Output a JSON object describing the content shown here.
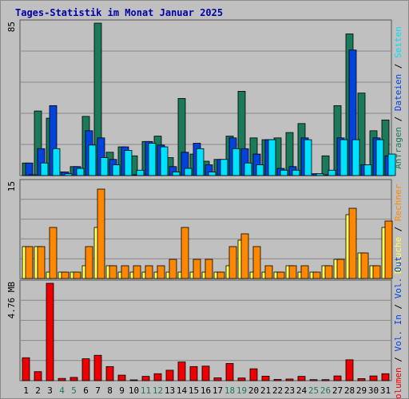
{
  "chart_data": {
    "type": "bar",
    "title": "Tages-Statistik im Monat Januar 2025",
    "days": [
      "1",
      "2",
      "3",
      "4",
      "5",
      "6",
      "7",
      "8",
      "9",
      "10",
      "11",
      "12",
      "13",
      "14",
      "15",
      "16",
      "17",
      "18",
      "19",
      "20",
      "21",
      "22",
      "23",
      "24",
      "25",
      "26",
      "27",
      "28",
      "29",
      "30",
      "31"
    ],
    "weekend_days": [
      "4",
      "5",
      "11",
      "12",
      "18",
      "19",
      "25",
      "26"
    ],
    "panels": [
      {
        "name": "top",
        "ymax": 85,
        "ymax_label": "85",
        "series": [
          {
            "name": "Anfragen",
            "color": "#1a7a5a",
            "values": [
              7,
              36,
              32,
              2,
              5,
              33,
              85,
              13,
              16,
              11,
              19,
              22,
              10,
              43,
              12,
              8,
              9,
              22,
              47,
              21,
              20,
              21,
              24,
              29,
              1,
              11,
              39,
              79,
              46,
              25,
              31
            ]
          },
          {
            "name": "Dateien",
            "color": "#0044dd",
            "values": [
              7,
              15,
              39,
              2,
              5,
              25,
              21,
              9,
              16,
              0,
              19,
              17,
              5,
              13,
              18,
              6,
              9,
              21,
              15,
              12,
              20,
              4,
              5,
              21,
              1,
              0,
              21,
              70,
              6,
              21,
              11
            ]
          },
          {
            "name": "Seiten",
            "color": "#00e0ff",
            "values": [
              0,
              7,
              15,
              1,
              4,
              17,
              10,
              6,
              14,
              3,
              18,
              16,
              2,
              4,
              15,
              2,
              9,
              15,
              7,
              6,
              20,
              3,
              3,
              20,
              1,
              3,
              20,
              20,
              6,
              20,
              12
            ]
          }
        ],
        "side_labels": [
          {
            "text": "Anfragen",
            "color": "#1a7a5a"
          },
          {
            "text": "Dateien",
            "color": "#0044dd"
          },
          {
            "text": "Seiten",
            "color": "#00e0ff"
          }
        ]
      },
      {
        "name": "mid",
        "ymax": 15,
        "ymax_label": "15",
        "series": [
          {
            "name": "Besuche",
            "color": "#ffff55",
            "values": [
              5,
              5,
              1,
              1,
              1,
              2,
              8,
              2,
              1,
              1,
              1,
              1,
              1,
              1,
              1,
              1,
              1,
              2,
              6,
              1,
              1,
              1,
              2,
              1,
              1,
              2,
              3,
              10,
              4,
              2,
              8
            ]
          },
          {
            "name": "Rechner",
            "color": "#ff8800",
            "values": [
              5,
              5,
              8,
              1,
              1,
              5,
              14,
              2,
              2,
              2,
              2,
              2,
              3,
              8,
              3,
              3,
              1,
              5,
              7,
              5,
              2,
              1,
              2,
              2,
              1,
              2,
              3,
              11,
              4,
              2,
              9
            ]
          }
        ],
        "side_labels": [
          {
            "text": "Besuche",
            "color": "#ffff55"
          },
          {
            "text": "Rechner",
            "color": "#ff8800"
          }
        ]
      },
      {
        "name": "bottom",
        "ymax": 4.76,
        "ymax_label": "4.76 MB",
        "series": [
          {
            "name": "Volumen",
            "color": "#ee0000",
            "values": [
              1.12,
              0.44,
              4.76,
              0.11,
              0.16,
              1.07,
              1.24,
              0.69,
              0.27,
              0.03,
              0.21,
              0.34,
              0.51,
              0.91,
              0.69,
              0.71,
              0.14,
              0.84,
              0.13,
              0.58,
              0.22,
              0.06,
              0.08,
              0.21,
              0.05,
              0.05,
              0.23,
              1.02,
              0.1,
              0.23,
              0.34
            ]
          }
        ],
        "side_labels": [
          {
            "text": "Volumen",
            "color": "#ee0000"
          },
          {
            "text": "Vol. In",
            "color": "#0044dd"
          },
          {
            "text": "Vol. Out",
            "color": "#0044dd"
          }
        ]
      }
    ],
    "side_separator": " / ",
    "grid": true,
    "background": "#c0c0c0",
    "weekday_label_color": "#1a7a5a",
    "label_color": "#000000"
  }
}
